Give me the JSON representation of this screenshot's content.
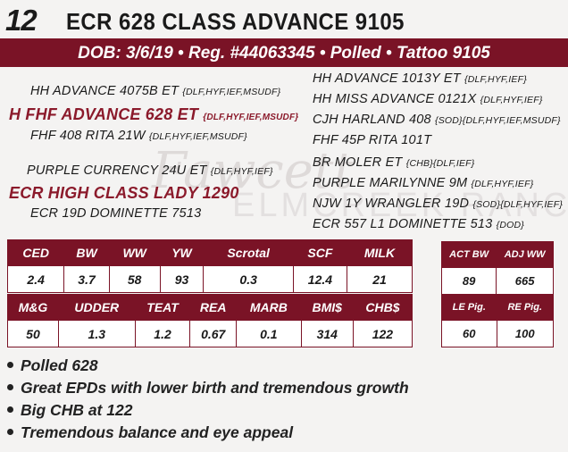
{
  "header": {
    "lot_number": "12",
    "title": "ECR 628 CLASS ADVANCE 9105",
    "banner": "DOB: 3/6/19 • Reg. #44063345 • Polled • Tattoo 9105"
  },
  "pedigree": {
    "sire_sire_sire": {
      "name": "HH ADVANCE 4075B ET",
      "epd": "{DLF,HYF,IEF,MSUDF}"
    },
    "sire": {
      "name": "H FHF ADVANCE 628 ET",
      "epd": "{DLF,HYF,IEF,MSUDF}"
    },
    "sire_dam": {
      "name": "FHF 408 RITA 21W",
      "epd": "{DLF,HYF,IEF,MSUDF}"
    },
    "dam_sire": {
      "name": "PURPLE CURRENCY 24U ET",
      "epd": "{DLF,HYF,IEF}"
    },
    "dam": {
      "name": "ECR HIGH CLASS LADY 1290",
      "epd": ""
    },
    "dam_dam": {
      "name": "ECR 19D DOMINETTE 7513",
      "epd": ""
    },
    "right": [
      {
        "name": "HH ADVANCE 1013Y ET",
        "epd": "{DLF,HYF,IEF}"
      },
      {
        "name": "HH MISS ADVANCE 0121X",
        "epd": "{DLF,HYF,IEF}"
      },
      {
        "name": "CJH HARLAND 408",
        "epd": "{SOD}{DLF,HYF,IEF,MSUDF}"
      },
      {
        "name": "FHF 45P RITA 101T",
        "epd": ""
      },
      {
        "name": "BR MOLER ET",
        "epd": "{CHB}{DLF,IEF}"
      },
      {
        "name": "PURPLE MARILYNNE 9M",
        "epd": "{DLF,HYF,IEF}"
      },
      {
        "name": "NJW 1Y WRANGLER 19D",
        "epd": "{SOD}{DLF,HYF,IEF}"
      },
      {
        "name": "ECR 557 L1 DOMINETTE 513",
        "epd": "{DOD}"
      }
    ]
  },
  "epd_table_1": {
    "headers": [
      "CED",
      "BW",
      "WW",
      "YW",
      "Scrotal",
      "SCF",
      "MILK"
    ],
    "values": [
      "2.4",
      "3.7",
      "58",
      "93",
      "0.3",
      "12.4",
      "21"
    ]
  },
  "epd_table_2": {
    "headers": [
      "M&G",
      "UDDER",
      "TEAT",
      "REA",
      "MARB",
      "BMI$",
      "CHB$"
    ],
    "values": [
      "50",
      "1.3",
      "1.2",
      "0.67",
      "0.1",
      "314",
      "122"
    ]
  },
  "actual_table": {
    "headers": [
      "ACT BW",
      "ADJ WW"
    ],
    "values": [
      "89",
      "665"
    ]
  },
  "pig_table": {
    "headers": [
      "LE Pig.",
      "RE Pig."
    ],
    "values": [
      "60",
      "100"
    ]
  },
  "notes": [
    "Polled 628",
    "Great EPDs with lower birth and tremendous growth",
    "Big CHB at 122",
    "Tremendous balance and eye appeal"
  ],
  "watermark": {
    "script": "Fawcett",
    "line": "ELMCREEK RANCH"
  },
  "colors": {
    "accent": "#7a1326",
    "highlight_text": "#8b1a2b",
    "background": "#f4f3f2"
  }
}
